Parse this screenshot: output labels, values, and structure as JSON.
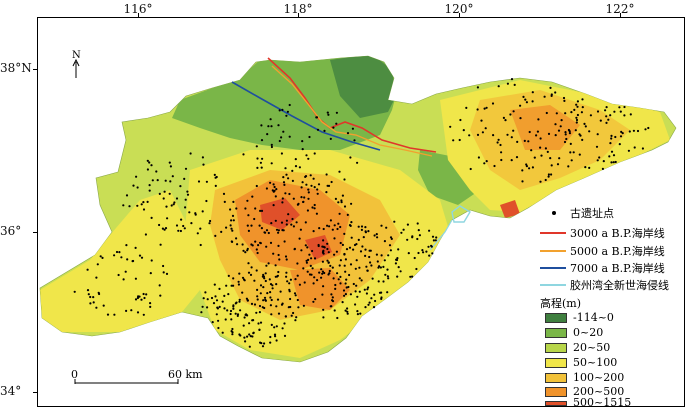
{
  "map": {
    "lon_ticks": [
      "116°",
      "118°",
      "120°",
      "122°"
    ],
    "lat_ticks": [
      "38°N",
      "36°",
      "34°"
    ],
    "north_label": "N",
    "scale": {
      "zero": "0",
      "end": "60 km"
    }
  },
  "legend": {
    "sites": {
      "label": "古遗址点",
      "icon": "dot-icon"
    },
    "lines": [
      {
        "label": "3000 a B.P.海岸线",
        "color": "#e0362a"
      },
      {
        "label": "5000 a B.P.海岸线",
        "color": "#f2a12e"
      },
      {
        "label": "7000 a B.P.海岸线",
        "color": "#1f4f9e"
      },
      {
        "label": "胶州湾全新世海侵线",
        "color": "#8fd6e0"
      }
    ],
    "elevation_title": "高程(m)",
    "elevation": [
      {
        "label": "-114~0",
        "color": "#3f7f3f"
      },
      {
        "label": "0~20",
        "color": "#7ab648"
      },
      {
        "label": "20~50",
        "color": "#b8d64a"
      },
      {
        "label": "50~100",
        "color": "#f0e64a"
      },
      {
        "label": "100~200",
        "color": "#f2c23a"
      },
      {
        "label": "200~500",
        "color": "#f0932b"
      },
      {
        "label": "500~1515",
        "color": "#e0502a"
      }
    ]
  }
}
